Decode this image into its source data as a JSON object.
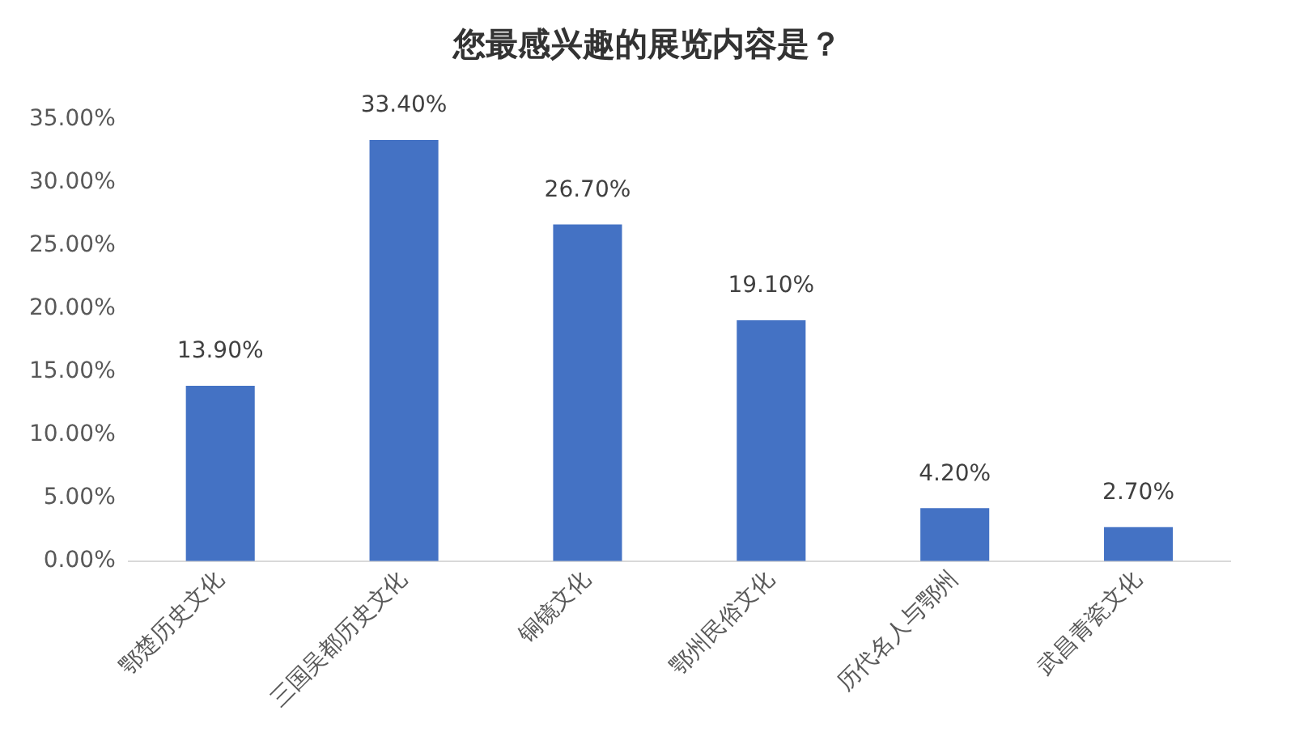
{
  "chart_data": {
    "type": "bar",
    "title": "您最感兴趣的展览内容是？",
    "categories": [
      "鄂楚历史文化",
      "三国吴都历史文化",
      "铜镜文化",
      "鄂州民俗文化",
      "历代名人与鄂州",
      "武昌青瓷文化"
    ],
    "values": [
      13.9,
      33.4,
      26.7,
      19.1,
      4.2,
      2.7
    ],
    "value_labels": [
      "13.90%",
      "33.40%",
      "26.70%",
      "19.10%",
      "4.20%",
      "2.70%"
    ],
    "color": "#4472c4",
    "ylim": [
      0,
      35
    ],
    "yticks": [
      {
        "value": 0,
        "label": "0.00%"
      },
      {
        "value": 5,
        "label": "5.00%"
      },
      {
        "value": 10,
        "label": "10.00%"
      },
      {
        "value": 15,
        "label": "15.00%"
      },
      {
        "value": 20,
        "label": "20.00%"
      },
      {
        "value": 25,
        "label": "25.00%"
      },
      {
        "value": 30,
        "label": "30.00%"
      },
      {
        "value": 35,
        "label": "35.00%"
      }
    ],
    "grid": false,
    "legend": false
  }
}
